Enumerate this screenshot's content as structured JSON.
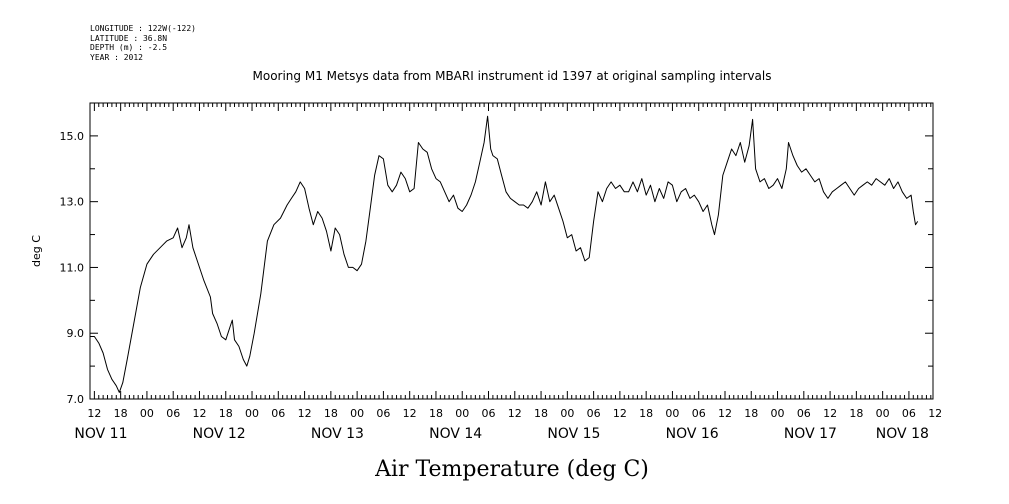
{
  "header": {
    "lines": [
      "LONGITUDE : 122W(-122)",
      "LATITUDE : 36.8N",
      "DEPTH (m) : -2.5",
      "YEAR : 2012"
    ]
  },
  "chart_data": {
    "type": "line",
    "title": "Mooring M1 Metsys data from MBARI instrument id 1397 at original sampling intervals",
    "xlabel": "Air Temperature (deg C)",
    "ylabel": "deg C",
    "ylim": [
      7.0,
      16.0
    ],
    "yticks": [
      7.0,
      9.0,
      11.0,
      13.0,
      15.0
    ],
    "ytick_labels": [
      "7.0",
      "9.0",
      "11.0",
      "13.0",
      "15.0"
    ],
    "x_unit": "hours since NOV 11 00:00",
    "xlim": [
      11.0,
      203.5
    ],
    "xtick_hours": [
      12,
      18,
      24,
      30,
      36,
      42,
      48,
      54,
      60,
      66,
      72,
      78,
      84,
      90,
      96,
      102,
      108,
      114,
      120,
      126,
      132,
      138,
      144,
      150,
      156,
      162,
      168,
      174,
      180,
      186,
      192,
      198,
      204
    ],
    "xtick_labels": [
      "12",
      "18",
      "00",
      "06",
      "12",
      "18",
      "00",
      "06",
      "12",
      "18",
      "00",
      "06",
      "12",
      "18",
      "00",
      "06",
      "12",
      "18",
      "00",
      "06",
      "12",
      "18",
      "00",
      "06",
      "12",
      "18",
      "00",
      "06",
      "12",
      "18",
      "00",
      "06",
      "12"
    ],
    "day_labels": [
      {
        "hour": 13.5,
        "text": "NOV 11"
      },
      {
        "hour": 40.5,
        "text": "NOV 12"
      },
      {
        "hour": 67.5,
        "text": "NOV 13"
      },
      {
        "hour": 94.5,
        "text": "NOV 14"
      },
      {
        "hour": 121.5,
        "text": "NOV 15"
      },
      {
        "hour": 148.5,
        "text": "NOV 16"
      },
      {
        "hour": 175.5,
        "text": "NOV 17"
      },
      {
        "hour": 196.5,
        "text": "NOV 18"
      }
    ],
    "grid": false,
    "series": [
      {
        "color": "#000000",
        "points": [
          [
            11.0,
            8.9
          ],
          [
            12.0,
            8.9
          ],
          [
            13.0,
            8.7
          ],
          [
            14.0,
            8.4
          ],
          [
            15.0,
            7.9
          ],
          [
            16.0,
            7.6
          ],
          [
            17.0,
            7.4
          ],
          [
            17.7,
            7.2
          ],
          [
            18.5,
            7.5
          ],
          [
            19.5,
            8.2
          ],
          [
            21.0,
            9.3
          ],
          [
            22.5,
            10.4
          ],
          [
            24.0,
            11.1
          ],
          [
            25.5,
            11.4
          ],
          [
            27.0,
            11.6
          ],
          [
            28.5,
            11.8
          ],
          [
            30.0,
            11.9
          ],
          [
            31.0,
            12.2
          ],
          [
            32.0,
            11.6
          ],
          [
            33.0,
            11.9
          ],
          [
            33.6,
            12.3
          ],
          [
            34.5,
            11.6
          ],
          [
            35.5,
            11.2
          ],
          [
            37.0,
            10.6
          ],
          [
            38.5,
            10.1
          ],
          [
            39.0,
            9.6
          ],
          [
            40.0,
            9.3
          ],
          [
            41.0,
            8.9
          ],
          [
            42.0,
            8.8
          ],
          [
            43.0,
            9.2
          ],
          [
            43.5,
            9.4
          ],
          [
            44.0,
            8.8
          ],
          [
            45.0,
            8.6
          ],
          [
            46.0,
            8.2
          ],
          [
            46.8,
            8.0
          ],
          [
            47.5,
            8.3
          ],
          [
            48.5,
            9.0
          ],
          [
            50.0,
            10.2
          ],
          [
            51.5,
            11.8
          ],
          [
            53.0,
            12.3
          ],
          [
            54.5,
            12.5
          ],
          [
            56.0,
            12.9
          ],
          [
            57.0,
            13.1
          ],
          [
            58.0,
            13.3
          ],
          [
            59.0,
            13.6
          ],
          [
            60.0,
            13.4
          ],
          [
            61.0,
            12.8
          ],
          [
            62.0,
            12.3
          ],
          [
            63.0,
            12.7
          ],
          [
            64.0,
            12.5
          ],
          [
            65.0,
            12.1
          ],
          [
            66.0,
            11.5
          ],
          [
            67.0,
            12.2
          ],
          [
            68.0,
            12.0
          ],
          [
            69.0,
            11.4
          ],
          [
            70.0,
            11.0
          ],
          [
            71.0,
            11.0
          ],
          [
            72.0,
            10.9
          ],
          [
            73.0,
            11.1
          ],
          [
            74.0,
            11.8
          ],
          [
            75.0,
            12.8
          ],
          [
            76.0,
            13.8
          ],
          [
            77.0,
            14.4
          ],
          [
            78.0,
            14.3
          ],
          [
            79.0,
            13.5
          ],
          [
            80.0,
            13.3
          ],
          [
            81.0,
            13.5
          ],
          [
            82.0,
            13.9
          ],
          [
            83.0,
            13.7
          ],
          [
            84.0,
            13.3
          ],
          [
            85.0,
            13.4
          ],
          [
            86.0,
            14.8
          ],
          [
            87.0,
            14.6
          ],
          [
            88.0,
            14.5
          ],
          [
            89.0,
            14.0
          ],
          [
            90.0,
            13.7
          ],
          [
            91.0,
            13.6
          ],
          [
            92.0,
            13.3
          ],
          [
            93.0,
            13.0
          ],
          [
            94.0,
            13.2
          ],
          [
            95.0,
            12.8
          ],
          [
            96.0,
            12.7
          ],
          [
            97.0,
            12.9
          ],
          [
            98.0,
            13.2
          ],
          [
            99.0,
            13.6
          ],
          [
            100.0,
            14.2
          ],
          [
            101.0,
            14.8
          ],
          [
            101.8,
            15.6
          ],
          [
            102.5,
            14.6
          ],
          [
            103.0,
            14.4
          ],
          [
            104.0,
            14.3
          ],
          [
            105.0,
            13.8
          ],
          [
            106.0,
            13.3
          ],
          [
            107.0,
            13.1
          ],
          [
            108.0,
            13.0
          ],
          [
            109.0,
            12.9
          ],
          [
            110.0,
            12.9
          ],
          [
            111.0,
            12.8
          ],
          [
            112.0,
            13.0
          ],
          [
            113.0,
            13.3
          ],
          [
            114.0,
            12.9
          ],
          [
            115.0,
            13.6
          ],
          [
            116.0,
            13.0
          ],
          [
            117.0,
            13.2
          ],
          [
            118.0,
            12.8
          ],
          [
            119.0,
            12.4
          ],
          [
            120.0,
            11.9
          ],
          [
            121.0,
            12.0
          ],
          [
            122.0,
            11.5
          ],
          [
            123.0,
            11.6
          ],
          [
            124.0,
            11.2
          ],
          [
            125.0,
            11.3
          ],
          [
            126.0,
            12.4
          ],
          [
            127.0,
            13.3
          ],
          [
            128.0,
            13.0
          ],
          [
            129.0,
            13.4
          ],
          [
            130.0,
            13.6
          ],
          [
            131.0,
            13.4
          ],
          [
            132.0,
            13.5
          ],
          [
            133.0,
            13.3
          ],
          [
            134.0,
            13.3
          ],
          [
            135.0,
            13.6
          ],
          [
            136.0,
            13.3
          ],
          [
            137.0,
            13.7
          ],
          [
            138.0,
            13.2
          ],
          [
            139.0,
            13.5
          ],
          [
            140.0,
            13.0
          ],
          [
            141.0,
            13.4
          ],
          [
            142.0,
            13.1
          ],
          [
            143.0,
            13.6
          ],
          [
            144.0,
            13.5
          ],
          [
            145.0,
            13.0
          ],
          [
            146.0,
            13.3
          ],
          [
            147.0,
            13.4
          ],
          [
            148.0,
            13.1
          ],
          [
            149.0,
            13.2
          ],
          [
            150.0,
            13.0
          ],
          [
            151.0,
            12.7
          ],
          [
            152.0,
            12.9
          ],
          [
            153.0,
            12.3
          ],
          [
            153.6,
            12.0
          ],
          [
            154.5,
            12.6
          ],
          [
            155.5,
            13.8
          ],
          [
            156.5,
            14.2
          ],
          [
            157.5,
            14.6
          ],
          [
            158.5,
            14.4
          ],
          [
            159.5,
            14.8
          ],
          [
            160.5,
            14.2
          ],
          [
            161.5,
            14.7
          ],
          [
            162.3,
            15.5
          ],
          [
            163.0,
            14.0
          ],
          [
            164.0,
            13.6
          ],
          [
            165.0,
            13.7
          ],
          [
            166.0,
            13.4
          ],
          [
            167.0,
            13.5
          ],
          [
            168.0,
            13.7
          ],
          [
            169.0,
            13.4
          ],
          [
            170.0,
            14.0
          ],
          [
            170.5,
            14.8
          ],
          [
            171.5,
            14.4
          ],
          [
            172.5,
            14.1
          ],
          [
            173.5,
            13.9
          ],
          [
            174.5,
            14.0
          ],
          [
            175.5,
            13.8
          ],
          [
            176.5,
            13.6
          ],
          [
            177.5,
            13.7
          ],
          [
            178.5,
            13.3
          ],
          [
            179.5,
            13.1
          ],
          [
            180.5,
            13.3
          ],
          [
            181.5,
            13.4
          ],
          [
            182.5,
            13.5
          ],
          [
            183.5,
            13.6
          ],
          [
            184.5,
            13.4
          ],
          [
            185.5,
            13.2
          ],
          [
            186.5,
            13.4
          ],
          [
            187.5,
            13.5
          ],
          [
            188.5,
            13.6
          ],
          [
            189.5,
            13.5
          ],
          [
            190.5,
            13.7
          ],
          [
            191.5,
            13.6
          ],
          [
            192.5,
            13.5
          ],
          [
            193.5,
            13.7
          ],
          [
            194.5,
            13.4
          ],
          [
            195.5,
            13.6
          ],
          [
            196.5,
            13.3
          ],
          [
            197.5,
            13.1
          ],
          [
            198.5,
            13.2
          ],
          [
            199.0,
            12.7
          ],
          [
            199.5,
            12.3
          ],
          [
            200.0,
            12.4
          ]
        ]
      }
    ]
  }
}
